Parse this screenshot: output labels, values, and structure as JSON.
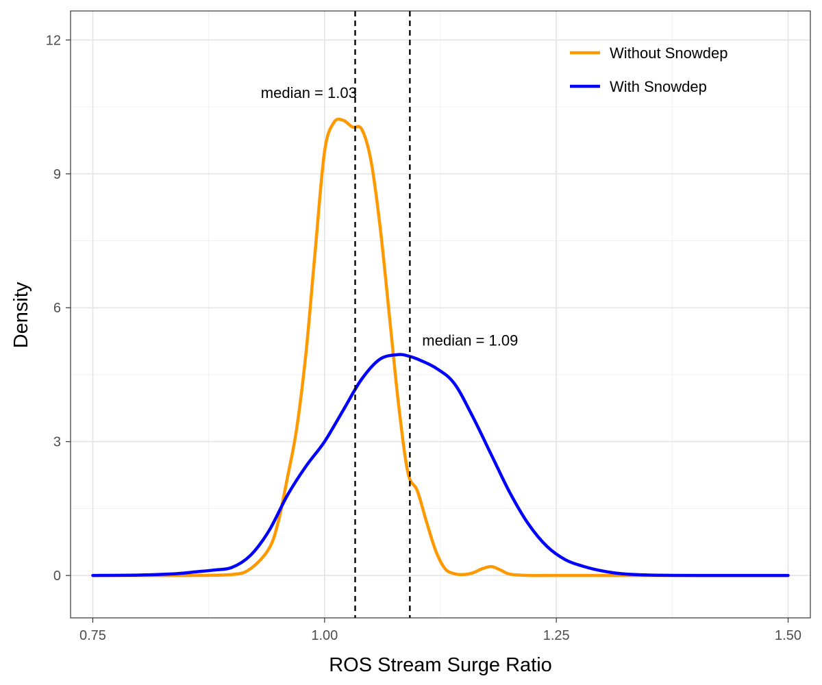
{
  "chart_data": {
    "type": "line",
    "title": "",
    "xlabel": "ROS Stream Surge Ratio",
    "ylabel": "Density",
    "xlim": [
      0.726,
      1.524
    ],
    "ylim": [
      -0.95,
      12.65
    ],
    "x_ticks": [
      0.75,
      1.0,
      1.25,
      1.5
    ],
    "x_tick_labels": [
      "0.75",
      "1.00",
      "1.25",
      "1.50"
    ],
    "y_ticks": [
      0,
      3,
      6,
      9,
      12
    ],
    "y_tick_labels": [
      "0",
      "3",
      "6",
      "9",
      "12"
    ],
    "grid": true,
    "legend_position": "top-right",
    "series": [
      {
        "name": "Without Snowdep",
        "color": "#FF9900",
        "x": [
          0.75,
          0.8,
          0.85,
          0.9,
          0.92,
          0.94,
          0.95,
          0.96,
          0.97,
          0.98,
          0.99,
          1.0,
          1.01,
          1.02,
          1.03,
          1.04,
          1.05,
          1.06,
          1.07,
          1.08,
          1.09,
          1.1,
          1.11,
          1.12,
          1.13,
          1.14,
          1.15,
          1.16,
          1.17,
          1.18,
          1.19,
          1.2,
          1.22,
          1.25,
          1.3,
          1.4,
          1.5
        ],
        "y": [
          0,
          0,
          0,
          0.02,
          0.15,
          0.6,
          1.2,
          2.2,
          3.3,
          5.0,
          7.3,
          9.5,
          10.15,
          10.2,
          10.05,
          10.0,
          9.3,
          7.8,
          5.8,
          3.8,
          2.3,
          1.9,
          1.2,
          0.55,
          0.15,
          0.04,
          0.02,
          0.06,
          0.15,
          0.2,
          0.12,
          0.03,
          0,
          0,
          0,
          0,
          0
        ]
      },
      {
        "name": "With Snowdep",
        "color": "#0000FF",
        "x": [
          0.75,
          0.8,
          0.84,
          0.86,
          0.88,
          0.9,
          0.92,
          0.94,
          0.96,
          0.98,
          1.0,
          1.02,
          1.04,
          1.06,
          1.08,
          1.09,
          1.1,
          1.12,
          1.14,
          1.16,
          1.18,
          1.2,
          1.22,
          1.24,
          1.26,
          1.28,
          1.3,
          1.32,
          1.35,
          1.4,
          1.5
        ],
        "y": [
          0,
          0.01,
          0.04,
          0.08,
          0.12,
          0.18,
          0.45,
          1.0,
          1.8,
          2.45,
          3.0,
          3.7,
          4.4,
          4.85,
          4.95,
          4.92,
          4.85,
          4.65,
          4.3,
          3.55,
          2.7,
          1.85,
          1.15,
          0.65,
          0.35,
          0.2,
          0.1,
          0.04,
          0.01,
          0,
          0
        ]
      }
    ],
    "vlines": [
      {
        "x": 1.033,
        "style": "dashed",
        "color": "#000000"
      },
      {
        "x": 1.092,
        "style": "dashed",
        "color": "#000000"
      }
    ],
    "annotations": [
      {
        "text": "median = 1.03",
        "x": 0.983,
        "y": 10.7
      },
      {
        "text": "median = 1.09",
        "x": 1.157,
        "y": 5.15
      }
    ]
  }
}
